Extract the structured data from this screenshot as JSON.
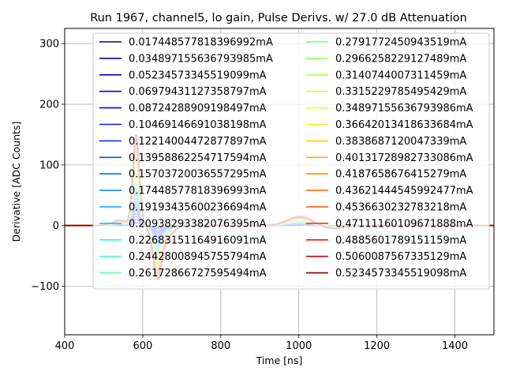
{
  "chart_data": {
    "type": "line",
    "title": "Run 1967, channel5, lo gain, Pulse Derivs. w/ 27.0 dB Attenuation",
    "xlabel": "Time [ns]",
    "ylabel": "Derivative [ADC Counts]",
    "xlim": [
      400,
      1500
    ],
    "ylim": [
      -180,
      325
    ],
    "xticks": [
      400,
      600,
      800,
      1000,
      1200,
      1400
    ],
    "yticks": [
      -100,
      0,
      100,
      200,
      300
    ],
    "xtick_labels": [
      "400",
      "600",
      "800",
      "1000",
      "1200",
      "1400"
    ],
    "ytick_labels": [
      "−100",
      "0",
      "100",
      "200",
      "300"
    ],
    "grid": true,
    "legend_placement": "top",
    "legend_columns": 2,
    "colormap": "jet",
    "series": [
      {
        "name": "0.017448577818396992mA",
        "color": "#00008f",
        "peak": 5,
        "trough": -3,
        "bump": 0.5
      },
      {
        "name": "0.034897155636793985mA",
        "color": "#0000a8",
        "peak": 10,
        "trough": -5,
        "bump": 1
      },
      {
        "name": "0.05234573345519099mA",
        "color": "#0000c4",
        "peak": 15,
        "trough": -8,
        "bump": 1.5
      },
      {
        "name": "0.06979431127358797mA",
        "color": "#0000e0",
        "peak": 20,
        "trough": -10,
        "bump": 2
      },
      {
        "name": "0.08724288909198497mA",
        "color": "#0000fb",
        "peak": 25,
        "trough": -13,
        "bump": 2.5
      },
      {
        "name": "0.10469146691038198mA",
        "color": "#0018ff",
        "peak": 30,
        "trough": -16,
        "bump": 3
      },
      {
        "name": "0.12214004472877897mA",
        "color": "#0034ff",
        "peak": 35,
        "trough": -18,
        "bump": 3.5
      },
      {
        "name": "0.13958862254717594mA",
        "color": "#0054ff",
        "peak": 40,
        "trough": -21,
        "bump": 4
      },
      {
        "name": "0.15703720036557295mA",
        "color": "#0070ff",
        "peak": 45,
        "trough": -24,
        "bump": 4.5
      },
      {
        "name": "0.17448577818396993mA",
        "color": "#0090ff",
        "peak": 50,
        "trough": -26,
        "bump": 5
      },
      {
        "name": "0.19193435600236694mA",
        "color": "#00acff",
        "peak": 55,
        "trough": -29,
        "bump": 5.5
      },
      {
        "name": "0.20938293382076395mA",
        "color": "#00c8ff",
        "peak": 60,
        "trough": -32,
        "bump": 6
      },
      {
        "name": "0.22683151164916091mA",
        "color": "#20ffd7",
        "peak": 65,
        "trough": -34,
        "bump": 6.5
      },
      {
        "name": "0.24428008945755794mA",
        "color": "#3cffba",
        "peak": 70,
        "trough": -37,
        "bump": 7
      },
      {
        "name": "0.26172866727595494mA",
        "color": "#58ff9e",
        "peak": 75,
        "trough": -40,
        "bump": 7.5
      },
      {
        "name": "0.2791772450943519mA",
        "color": "#74ff83",
        "peak": 80,
        "trough": -42,
        "bump": 8
      },
      {
        "name": "0.2966258229127489mA",
        "color": "#90ff66",
        "peak": 85,
        "trough": -45,
        "bump": 8.5
      },
      {
        "name": "0.3140744007311459mA",
        "color": "#acff4a",
        "peak": 90,
        "trough": -48,
        "bump": 9
      },
      {
        "name": "0.3315229785495429mA",
        "color": "#c8ff2f",
        "peak": 95,
        "trough": -50,
        "bump": 9.5
      },
      {
        "name": "0.34897155636793986mA",
        "color": "#e4ff13",
        "peak": 100,
        "trough": -53,
        "bump": 10
      },
      {
        "name": "0.36642013418633684mA",
        "color": "#ffe600",
        "peak": 105,
        "trough": -56,
        "bump": 10.5
      },
      {
        "name": "0.3838687120047339mA",
        "color": "#ffc800",
        "peak": 110,
        "trough": -58,
        "bump": 11
      },
      {
        "name": "0.40131728982733086mA",
        "color": "#ffac00",
        "peak": 115,
        "trough": -61,
        "bump": 11.5
      },
      {
        "name": "0.4187658676415279mA",
        "color": "#ff8c00",
        "peak": 120,
        "trough": -64,
        "bump": 12
      },
      {
        "name": "0.43621444545992477mA",
        "color": "#ff6e00",
        "peak": 125,
        "trough": -66,
        "bump": 12.5
      },
      {
        "name": "0.4536630232783218mA",
        "color": "#ff4e00",
        "peak": 130,
        "trough": -69,
        "bump": 13
      },
      {
        "name": "0.47111160109671888mA",
        "color": "#ff3000",
        "peak": 135,
        "trough": -72,
        "bump": 13.5
      },
      {
        "name": "0.4885601789151159mA",
        "color": "#ff1400",
        "peak": 140,
        "trough": -74,
        "bump": 14
      },
      {
        "name": "0.5060087567335129mA",
        "color": "#c40000",
        "peak": 145,
        "trough": -77,
        "bump": 14.5
      },
      {
        "name": "0.5234573345519098mA",
        "color": "#800000",
        "peak": 150,
        "trough": -80,
        "bump": 15
      }
    ]
  }
}
